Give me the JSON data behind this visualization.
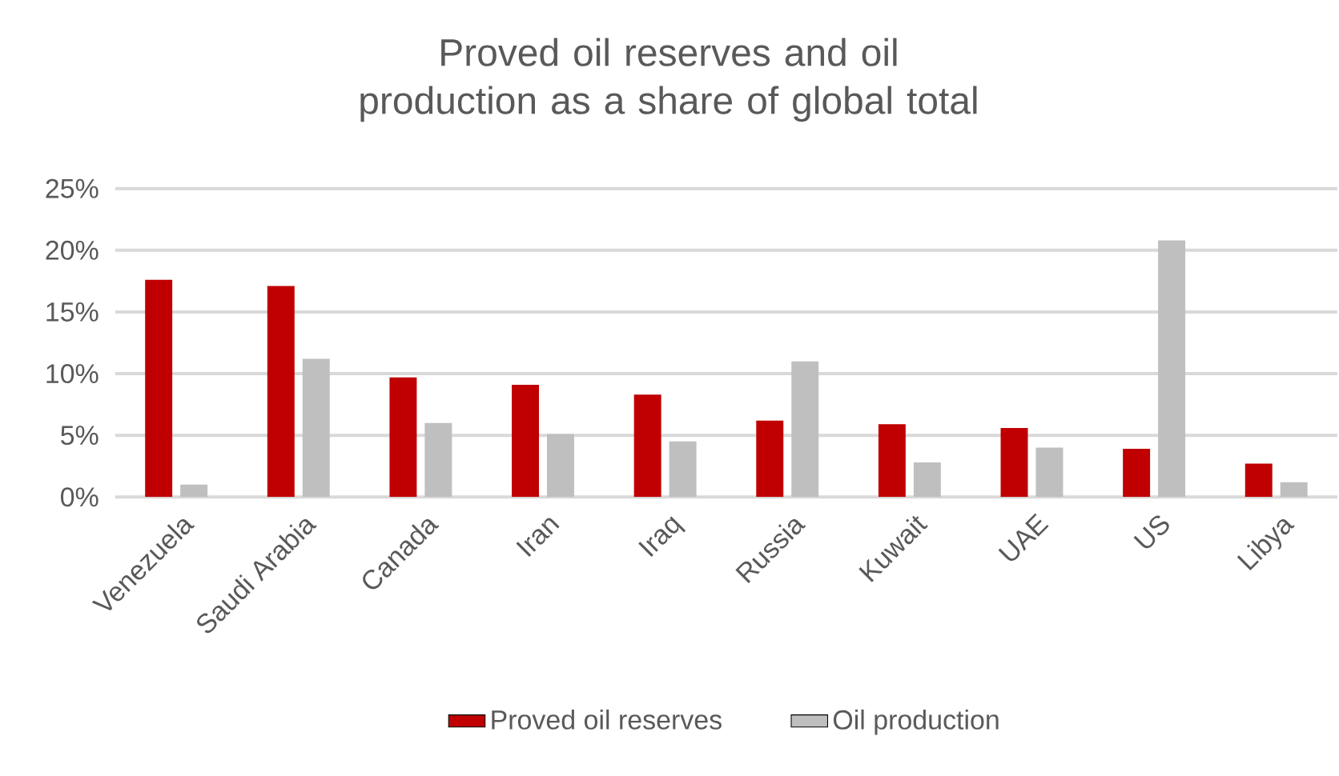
{
  "chart_data": {
    "type": "bar",
    "title": "Proved oil reserves and oil production as a share of global total",
    "categories": [
      "Venezuela",
      "Saudi Arabia",
      "Canada",
      "Iran",
      "Iraq",
      "Russia",
      "Kuwait",
      "UAE",
      "US",
      "Libya"
    ],
    "series": [
      {
        "name": "Proved oil reserves",
        "color": "#c00000",
        "values": [
          17.6,
          17.1,
          9.7,
          9.1,
          8.3,
          6.2,
          5.9,
          5.6,
          3.9,
          2.7
        ]
      },
      {
        "name": "Oil production",
        "color": "#bfbfbf",
        "values": [
          1.0,
          11.2,
          6.0,
          5.1,
          4.5,
          11.0,
          2.8,
          4.0,
          20.8,
          1.2
        ]
      }
    ],
    "ylim": [
      0,
      25
    ],
    "yticks": [
      {
        "value": 0,
        "label": "0%"
      },
      {
        "value": 5,
        "label": "5%"
      },
      {
        "value": 10,
        "label": "10%"
      },
      {
        "value": 15,
        "label": "15%"
      },
      {
        "value": 20,
        "label": "20%"
      },
      {
        "value": 25,
        "label": "25%"
      }
    ],
    "grid": "y",
    "legend": "bottom"
  }
}
